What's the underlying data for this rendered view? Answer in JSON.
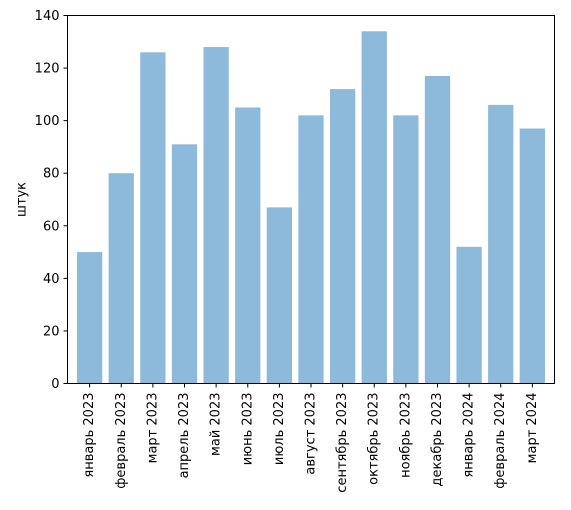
{
  "chart_data": {
    "type": "bar",
    "title": "",
    "xlabel": "",
    "ylabel": "штук",
    "ylim": [
      0,
      140
    ],
    "yticks": [
      0,
      20,
      40,
      60,
      80,
      100,
      120,
      140
    ],
    "grid": false,
    "categories": [
      "январь 2023",
      "февраль 2023",
      "март 2023",
      "апрель 2023",
      "май 2023",
      "июнь 2023",
      "июль 2023",
      "август 2023",
      "сентябрь 2023",
      "октябрь 2023",
      "ноябрь 2023",
      "декабрь 2023",
      "январь 2024",
      "февраль 2024",
      "март 2024"
    ],
    "values": [
      50,
      80,
      126,
      91,
      128,
      105,
      67,
      102,
      112,
      134,
      102,
      117,
      52,
      106,
      97
    ],
    "bar_color": "#8db9db"
  }
}
